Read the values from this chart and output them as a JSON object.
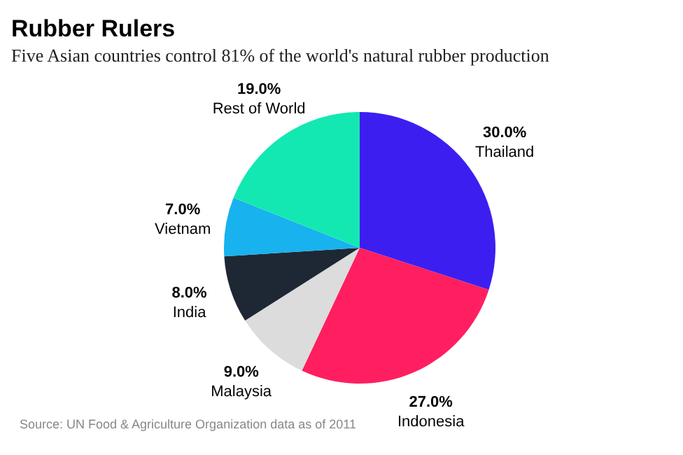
{
  "chart_data": {
    "type": "pie",
    "title": "Rubber Rulers",
    "subtitle": "Five Asian countries control 81% of the world's natural rubber production",
    "categories": [
      "Thailand",
      "Indonesia",
      "Malaysia",
      "India",
      "Vietnam",
      "Rest of World"
    ],
    "values": [
      30,
      27,
      9,
      8,
      7,
      19
    ],
    "value_labels": [
      "30.0%",
      "27.0%",
      "9.0%",
      "8.0%",
      "7.0%",
      "19.0%"
    ],
    "colors": [
      "#3d1ef0",
      "#ff1f60",
      "#dcdcdc",
      "#1e2834",
      "#18b2ee",
      "#14e8b2"
    ],
    "annotations": [
      "Source: UN Food & Agriculture Organization data as of 2011"
    ]
  }
}
